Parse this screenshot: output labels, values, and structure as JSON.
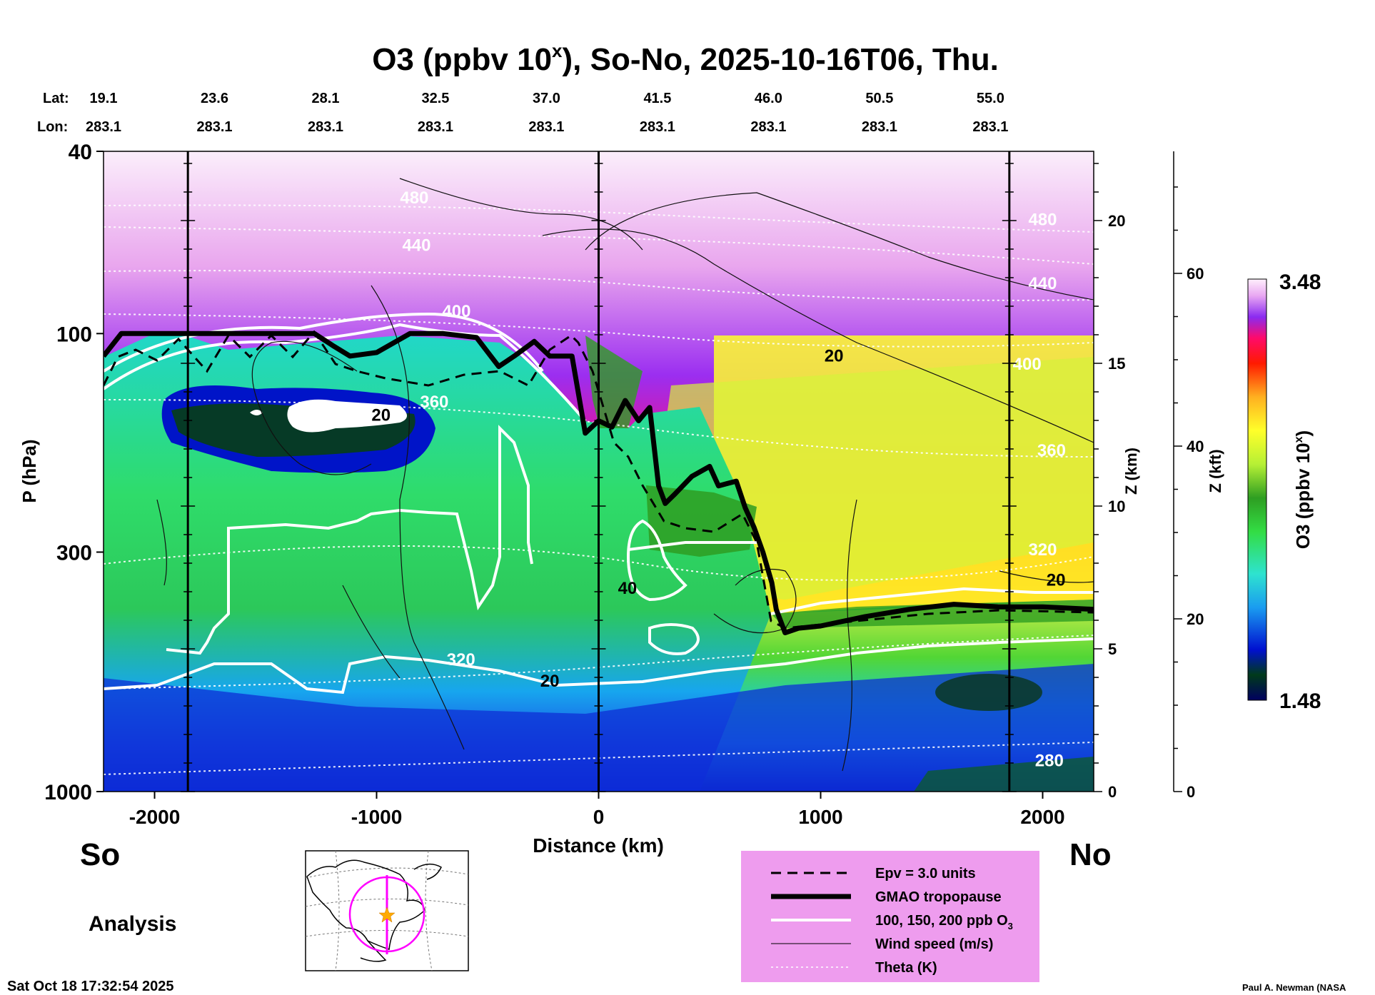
{
  "chart_data": {
    "type": "heatmap",
    "title": "O3 (ppbv 10",
    "title_superscript": "x",
    "title_rest": "), So-No, 2025-10-16T06, Thu.",
    "xlabel": "Distance (km)",
    "ylabel": "P (hPa)",
    "right_axis1_label": "Z (km)",
    "right_axis2_label": "Z (kft)",
    "colorbar_label": "O3 (ppbv 10",
    "colorbar_label_superscript": "x",
    "colorbar_label_rest": ")",
    "colorbar_max": "3.48",
    "colorbar_min": "1.48",
    "colorbar_range": [
      1.48,
      3.48
    ],
    "xlim": [
      -2230,
      2230
    ],
    "ylim_hpa": [
      1000,
      40
    ],
    "x_ticks": [
      "-2000",
      "-1000",
      "0",
      "1000",
      "2000"
    ],
    "x_tick_values": [
      -2000,
      -1000,
      0,
      1000,
      2000
    ],
    "y_ticks": [
      "40",
      "100",
      "300",
      "1000"
    ],
    "y_tick_values": [
      40,
      100,
      300,
      1000
    ],
    "z_km_ticks": [
      "0",
      "5",
      "10",
      "15",
      "20"
    ],
    "z_km_tick_values": [
      0,
      5,
      10,
      15,
      20
    ],
    "z_kft_ticks": [
      "0",
      "20",
      "40",
      "60"
    ],
    "z_kft_tick_values": [
      0,
      20,
      40,
      60
    ],
    "lat_label": "Lat:",
    "lon_label": "Lon:",
    "lat_values": [
      "19.1",
      "23.6",
      "28.1",
      "32.5",
      "37.0",
      "41.5",
      "46.0",
      "50.5",
      "55.0"
    ],
    "lon_values": [
      "283.1",
      "283.1",
      "283.1",
      "283.1",
      "283.1",
      "283.1",
      "283.1",
      "283.1",
      "283.1"
    ],
    "lat_distance_km": [
      -2230,
      -1730,
      -1230,
      -735,
      -235,
      265,
      765,
      1265,
      1765
    ],
    "vertical_markers_km": [
      -1850,
      0,
      1850
    ],
    "theta_labels": [
      {
        "text": "480",
        "x_km": -830,
        "p_hpa": 52
      },
      {
        "text": "480",
        "x_km": 2000,
        "p_hpa": 58
      },
      {
        "text": "440",
        "x_km": -820,
        "p_hpa": 66
      },
      {
        "text": "440",
        "x_km": 2000,
        "p_hpa": 80
      },
      {
        "text": "400",
        "x_km": -640,
        "p_hpa": 92
      },
      {
        "text": "400",
        "x_km": 1930,
        "p_hpa": 120
      },
      {
        "text": "360",
        "x_km": -740,
        "p_hpa": 145
      },
      {
        "text": "360",
        "x_km": 2040,
        "p_hpa": 185
      },
      {
        "text": "320",
        "x_km": 2000,
        "p_hpa": 305
      },
      {
        "text": "320",
        "x_km": -620,
        "p_hpa": 530
      },
      {
        "text": "280",
        "x_km": 2030,
        "p_hpa": 880
      }
    ],
    "wind_labels": [
      {
        "text": "20",
        "x_km": 1060,
        "p_hpa": 115
      },
      {
        "text": "20",
        "x_km": -980,
        "p_hpa": 155
      },
      {
        "text": "40",
        "x_km": 130,
        "p_hpa": 370
      },
      {
        "text": "20",
        "x_km": -220,
        "p_hpa": 590
      },
      {
        "text": "20",
        "x_km": 2060,
        "p_hpa": 355
      }
    ],
    "tropopause_hpa": {
      "x_km": [
        -2230,
        -2150,
        -2080,
        -1950,
        -1800,
        -1500,
        -1280,
        -1200,
        -1120,
        -1000,
        -850,
        -700,
        -550,
        -450,
        -380,
        -290,
        -220,
        -120,
        -60,
        0,
        60,
        120,
        180,
        230,
        270,
        300,
        340,
        420,
        500,
        540,
        620,
        660,
        700,
        740,
        780,
        800,
        840,
        900,
        1000,
        1200,
        1400,
        1600,
        1800,
        2000,
        2230
      ],
      "p_hpa": [
        112,
        100,
        100,
        100,
        100,
        100,
        100,
        106,
        112,
        110,
        100,
        100,
        102,
        118,
        112,
        104,
        112,
        112,
        165,
        155,
        160,
        140,
        155,
        145,
        215,
        235,
        225,
        205,
        195,
        215,
        210,
        240,
        265,
        300,
        350,
        400,
        450,
        440,
        435,
        415,
        400,
        390,
        395,
        395,
        400
      ]
    },
    "legend": {
      "epv": "Epv = 3.0 units",
      "tropopause": "GMAO tropopause",
      "o3_contours_text": "100, 150, 200 ppb O",
      "o3_contours_sub": "3",
      "wind": "Wind speed (m/s)",
      "theta": "Theta (K)"
    }
  },
  "labels": {
    "south": "So",
    "north": "No",
    "analysis": "Analysis",
    "timestamp": "Sat Oct 18 17:32:54 2025",
    "credit": "Paul A. Newman (NASA"
  },
  "colors": {
    "legend_bg": "#ee9cee",
    "inset_circle": "#ff00ff",
    "inset_star": "#ffaa00"
  }
}
